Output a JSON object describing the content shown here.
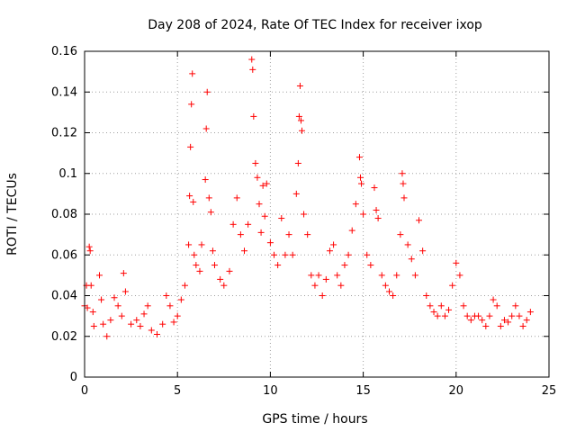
{
  "chart_data": {
    "type": "scatter",
    "title": "Day 208 of 2024, Rate Of TEC Index for receiver ixop",
    "xlabel": "GPS time / hours",
    "ylabel": "ROTI / TECUs",
    "xlim": [
      0,
      25
    ],
    "ylim": [
      0,
      0.16
    ],
    "x_ticks": [
      0,
      5,
      10,
      15,
      20,
      25
    ],
    "y_ticks": [
      0,
      0.02,
      0.04,
      0.06,
      0.08,
      0.1,
      0.12,
      0.14,
      0.16
    ],
    "x_tick_labels": [
      "0",
      "5",
      "10",
      "15",
      "20",
      "25"
    ],
    "y_tick_labels": [
      "0",
      "0.02",
      "0.04",
      "0.06",
      "0.08",
      "0.1",
      "0.12",
      "0.14",
      "0.16"
    ],
    "grid": true,
    "marker": "+",
    "color": "#ff0000",
    "series": [
      {
        "points": [
          [
            0.0,
            0.035
          ],
          [
            0.1,
            0.045
          ],
          [
            0.15,
            0.034
          ],
          [
            0.25,
            0.064
          ],
          [
            0.3,
            0.062
          ],
          [
            0.35,
            0.045
          ],
          [
            0.45,
            0.032
          ],
          [
            0.5,
            0.025
          ],
          [
            0.8,
            0.05
          ],
          [
            0.9,
            0.038
          ],
          [
            1.0,
            0.026
          ],
          [
            1.2,
            0.02
          ],
          [
            1.4,
            0.028
          ],
          [
            1.6,
            0.039
          ],
          [
            1.8,
            0.035
          ],
          [
            2.0,
            0.03
          ],
          [
            2.1,
            0.051
          ],
          [
            2.2,
            0.042
          ],
          [
            2.5,
            0.026
          ],
          [
            2.8,
            0.028
          ],
          [
            3.0,
            0.025
          ],
          [
            3.2,
            0.031
          ],
          [
            3.4,
            0.035
          ],
          [
            3.6,
            0.023
          ],
          [
            3.9,
            0.021
          ],
          [
            4.2,
            0.026
          ],
          [
            4.4,
            0.04
          ],
          [
            4.6,
            0.035
          ],
          [
            4.8,
            0.027
          ],
          [
            5.0,
            0.03
          ],
          [
            5.2,
            0.038
          ],
          [
            5.4,
            0.045
          ],
          [
            5.6,
            0.065
          ],
          [
            5.65,
            0.089
          ],
          [
            5.7,
            0.113
          ],
          [
            5.75,
            0.134
          ],
          [
            5.8,
            0.149
          ],
          [
            5.85,
            0.086
          ],
          [
            5.9,
            0.06
          ],
          [
            6.0,
            0.055
          ],
          [
            6.2,
            0.052
          ],
          [
            6.3,
            0.065
          ],
          [
            6.5,
            0.097
          ],
          [
            6.55,
            0.122
          ],
          [
            6.6,
            0.14
          ],
          [
            6.7,
            0.088
          ],
          [
            6.8,
            0.081
          ],
          [
            6.9,
            0.062
          ],
          [
            7.0,
            0.055
          ],
          [
            7.3,
            0.048
          ],
          [
            7.5,
            0.045
          ],
          [
            7.8,
            0.052
          ],
          [
            8.0,
            0.075
          ],
          [
            8.2,
            0.088
          ],
          [
            8.4,
            0.07
          ],
          [
            8.6,
            0.062
          ],
          [
            8.8,
            0.075
          ],
          [
            9.0,
            0.156
          ],
          [
            9.05,
            0.151
          ],
          [
            9.1,
            0.128
          ],
          [
            9.2,
            0.105
          ],
          [
            9.3,
            0.098
          ],
          [
            9.4,
            0.085
          ],
          [
            9.5,
            0.071
          ],
          [
            9.6,
            0.094
          ],
          [
            9.7,
            0.079
          ],
          [
            9.8,
            0.095
          ],
          [
            10.0,
            0.066
          ],
          [
            10.2,
            0.06
          ],
          [
            10.4,
            0.055
          ],
          [
            10.6,
            0.078
          ],
          [
            10.8,
            0.06
          ],
          [
            11.0,
            0.07
          ],
          [
            11.2,
            0.06
          ],
          [
            11.4,
            0.09
          ],
          [
            11.5,
            0.105
          ],
          [
            11.55,
            0.128
          ],
          [
            11.6,
            0.143
          ],
          [
            11.65,
            0.126
          ],
          [
            11.7,
            0.121
          ],
          [
            11.8,
            0.08
          ],
          [
            12.0,
            0.07
          ],
          [
            12.2,
            0.05
          ],
          [
            12.4,
            0.045
          ],
          [
            12.6,
            0.05
          ],
          [
            12.8,
            0.04
          ],
          [
            13.0,
            0.048
          ],
          [
            13.2,
            0.062
          ],
          [
            13.4,
            0.065
          ],
          [
            13.6,
            0.05
          ],
          [
            13.8,
            0.045
          ],
          [
            14.0,
            0.055
          ],
          [
            14.2,
            0.06
          ],
          [
            14.4,
            0.072
          ],
          [
            14.6,
            0.085
          ],
          [
            14.8,
            0.108
          ],
          [
            14.85,
            0.098
          ],
          [
            14.9,
            0.095
          ],
          [
            15.0,
            0.08
          ],
          [
            15.2,
            0.06
          ],
          [
            15.4,
            0.055
          ],
          [
            15.6,
            0.093
          ],
          [
            15.7,
            0.082
          ],
          [
            15.8,
            0.078
          ],
          [
            16.0,
            0.05
          ],
          [
            16.2,
            0.045
          ],
          [
            16.4,
            0.042
          ],
          [
            16.6,
            0.04
          ],
          [
            16.8,
            0.05
          ],
          [
            17.0,
            0.07
          ],
          [
            17.1,
            0.1
          ],
          [
            17.15,
            0.095
          ],
          [
            17.2,
            0.088
          ],
          [
            17.4,
            0.065
          ],
          [
            17.6,
            0.058
          ],
          [
            17.8,
            0.05
          ],
          [
            18.0,
            0.077
          ],
          [
            18.2,
            0.062
          ],
          [
            18.4,
            0.04
          ],
          [
            18.6,
            0.035
          ],
          [
            18.8,
            0.032
          ],
          [
            19.0,
            0.03
          ],
          [
            19.2,
            0.035
          ],
          [
            19.4,
            0.03
          ],
          [
            19.6,
            0.033
          ],
          [
            19.8,
            0.045
          ],
          [
            20.0,
            0.056
          ],
          [
            20.2,
            0.05
          ],
          [
            20.4,
            0.035
          ],
          [
            20.6,
            0.03
          ],
          [
            20.8,
            0.028
          ],
          [
            21.0,
            0.03
          ],
          [
            21.2,
            0.03
          ],
          [
            21.4,
            0.028
          ],
          [
            21.6,
            0.025
          ],
          [
            21.8,
            0.03
          ],
          [
            22.0,
            0.038
          ],
          [
            22.2,
            0.035
          ],
          [
            22.4,
            0.025
          ],
          [
            22.6,
            0.028
          ],
          [
            22.8,
            0.027
          ],
          [
            23.0,
            0.03
          ],
          [
            23.2,
            0.035
          ],
          [
            23.4,
            0.03
          ],
          [
            23.6,
            0.025
          ],
          [
            23.8,
            0.028
          ],
          [
            24.0,
            0.032
          ]
        ]
      }
    ]
  }
}
